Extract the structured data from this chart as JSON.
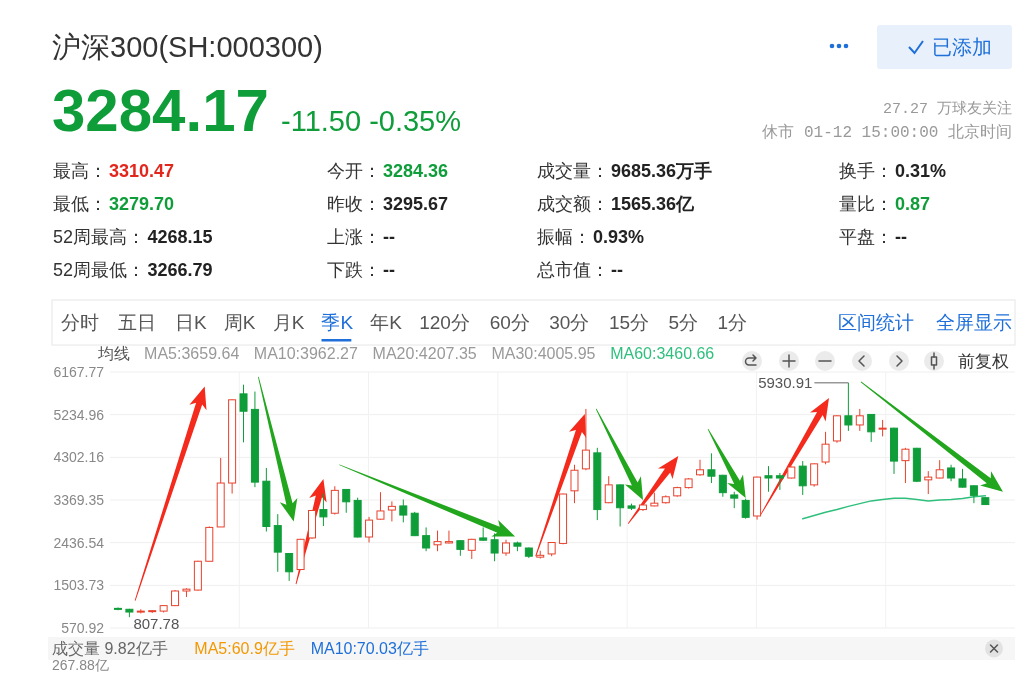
{
  "chart_data": [
    {
      "type": "other",
      "title": "沪深300(SH:000300)",
      "annotations": [
        "3284.17",
        "-11.50 -0.35%",
        "27.27 万球友关注",
        "休市 01-12 15:00:00 北京时间",
        "已添加",
        "最高：",
        "3310.47",
        "今开：",
        "3284.36",
        "成交量：",
        "9685.36万手",
        "换手：",
        "0.31%",
        "最低：",
        "3279.70",
        "昨收：",
        "3295.67",
        "成交额：",
        "1565.36亿",
        "量比：",
        "0.87",
        "52周最高：",
        "4268.15",
        "上涨：",
        "--",
        "振幅：",
        "0.93%",
        "平盘：",
        "--",
        "52周最低：",
        "3266.79",
        "下跌：",
        "--",
        "总市值：",
        "--",
        "分时",
        "五日",
        "日K",
        "周K",
        "月K",
        "季K",
        "年K",
        "120分",
        "60分",
        "30分",
        "15分",
        "5分",
        "1分",
        "区间统计",
        "全屏显示",
        "前复权"
      ]
    },
    {
      "type": "candlestick",
      "categories": [
        null,
        null,
        null,
        null,
        null,
        null,
        null,
        null,
        null,
        null,
        null,
        null,
        null,
        null,
        null,
        null,
        null,
        null,
        null,
        null,
        null,
        null,
        null,
        null,
        null,
        null,
        null,
        null,
        null,
        null,
        null,
        null,
        null,
        null,
        null,
        null,
        null,
        null,
        null,
        null,
        null,
        null,
        null,
        null,
        null,
        null,
        null,
        null,
        null,
        null,
        null,
        null,
        null,
        null,
        null,
        null,
        null,
        null,
        null,
        null,
        null,
        null,
        null,
        null,
        null,
        null,
        null,
        null,
        null,
        null,
        null,
        null,
        null,
        null,
        null,
        null,
        null
      ],
      "ohlc": [
        [
          1000,
          1020,
          960,
          980
        ],
        [
          980,
          990,
          807.78,
          920
        ],
        [
          920,
          980,
          890,
          940
        ],
        [
          940,
          960,
          900,
          950
        ],
        [
          940,
          1070,
          910,
          1060
        ],
        [
          1060,
          1400,
          1050,
          1380
        ],
        [
          1380,
          1440,
          1250,
          1420
        ],
        [
          1400,
          2040,
          1390,
          2030
        ],
        [
          2030,
          2790,
          2030,
          2770
        ],
        [
          2780,
          4290,
          2780,
          3740
        ],
        [
          3740,
          5570,
          3510,
          5560
        ],
        [
          5690,
          5890,
          4630,
          5310
        ],
        [
          5350,
          5740,
          3650,
          3760
        ],
        [
          3780,
          4070,
          2680,
          2790
        ],
        [
          2810,
          3060,
          1800,
          2230
        ],
        [
          2200,
          2210,
          1600,
          1800
        ],
        [
          1850,
          2520,
          1840,
          2510
        ],
        [
          2540,
          3150,
          2520,
          3140
        ],
        [
          3160,
          3510,
          2800,
          3000
        ],
        [
          3080,
          3670,
          3050,
          3580
        ],
        [
          3600,
          3610,
          3090,
          3330
        ],
        [
          3360,
          3420,
          2550,
          2560
        ],
        [
          2560,
          3000,
          2440,
          2930
        ],
        [
          2950,
          3540,
          2940,
          3130
        ],
        [
          3150,
          3340,
          2900,
          3230
        ],
        [
          3240,
          3380,
          2880,
          3040
        ],
        [
          3080,
          3110,
          2580,
          2590
        ],
        [
          2590,
          2770,
          2250,
          2320
        ],
        [
          2390,
          2700,
          2250,
          2460
        ],
        [
          2430,
          2700,
          2420,
          2460
        ],
        [
          2480,
          2490,
          2150,
          2290
        ],
        [
          2270,
          2520,
          2080,
          2510
        ],
        [
          2540,
          2770,
          2480,
          2490
        ],
        [
          2500,
          2640,
          2030,
          2210
        ],
        [
          2210,
          2500,
          2150,
          2430
        ],
        [
          2430,
          2460,
          2250,
          2360
        ],
        [
          2320,
          2330,
          2100,
          2140
        ],
        [
          2120,
          2260,
          2090,
          2160
        ],
        [
          2190,
          2450,
          2140,
          2440
        ],
        [
          2420,
          3510,
          2400,
          3500
        ],
        [
          3570,
          4140,
          3300,
          4020
        ],
        [
          4050,
          5360,
          4020,
          4460
        ],
        [
          4400,
          4510,
          2930,
          3160
        ],
        [
          3310,
          3890,
          3300,
          3700
        ],
        [
          3700,
          3710,
          2790,
          3200
        ],
        [
          3240,
          3290,
          3150,
          3190
        ],
        [
          3160,
          3270,
          3130,
          3260
        ],
        [
          3240,
          3530,
          3230,
          3300
        ],
        [
          3310,
          3470,
          3290,
          3440
        ],
        [
          3460,
          3660,
          3440,
          3640
        ],
        [
          3640,
          3850,
          3620,
          3830
        ],
        [
          3920,
          4250,
          3900,
          4030
        ],
        [
          4030,
          4390,
          3740,
          3890
        ],
        [
          3910,
          3920,
          3440,
          3530
        ],
        [
          3480,
          3550,
          3190,
          3410
        ],
        [
          3360,
          3400,
          2960,
          2990
        ],
        [
          3020,
          3880,
          2940,
          3870
        ],
        [
          3900,
          4110,
          3550,
          3850
        ],
        [
          3900,
          3960,
          3590,
          3850
        ],
        [
          3850,
          4100,
          3840,
          4090
        ],
        [
          4110,
          4220,
          3480,
          3680
        ],
        [
          3700,
          4170,
          3660,
          4160
        ],
        [
          4200,
          4860,
          4150,
          4590
        ],
        [
          4660,
          5220,
          4620,
          5210
        ],
        [
          5210,
          5930.91,
          4880,
          5010
        ],
        [
          5010,
          5360,
          4880,
          5210
        ],
        [
          5240,
          5240,
          4640,
          4860
        ],
        [
          4920,
          5120,
          4760,
          4940
        ],
        [
          4940,
          4950,
          3940,
          4220
        ],
        [
          4230,
          4510,
          3740,
          4480
        ],
        [
          4500,
          4510,
          3760,
          3780
        ],
        [
          3810,
          4000,
          3500,
          3870
        ],
        [
          3850,
          4240,
          3840,
          4030
        ],
        [
          4070,
          4140,
          3780,
          3850
        ],
        [
          3830,
          4050,
          3640,
          3650
        ],
        [
          3680,
          3690,
          3300,
          3470
        ],
        [
          3420,
          3430,
          3260,
          3270
        ]
      ],
      "colors": [
        "#0f9d3a",
        "#0f9d3a",
        "#e8412c",
        "#e8412c",
        "#e8412c",
        "#e8412c",
        "#e8412c",
        "#e8412c",
        "#e8412c",
        "#e8412c",
        "#e8412c",
        "#0f9d3a",
        "#0f9d3a",
        "#0f9d3a",
        "#0f9d3a",
        "#0f9d3a",
        "#e8412c",
        "#e8412c",
        "#0f9d3a",
        "#e8412c",
        "#0f9d3a",
        "#0f9d3a",
        "#e8412c",
        "#e8412c",
        "#e8412c",
        "#0f9d3a",
        "#0f9d3a",
        "#0f9d3a",
        "#e8412c",
        "#e8412c",
        "#0f9d3a",
        "#e8412c",
        "#0f9d3a",
        "#0f9d3a",
        "#e8412c",
        "#0f9d3a",
        "#0f9d3a",
        "#e8412c",
        "#e8412c",
        "#e8412c",
        "#e8412c",
        "#e8412c",
        "#0f9d3a",
        "#e8412c",
        "#0f9d3a",
        "#0f9d3a",
        "#e8412c",
        "#e8412c",
        "#e8412c",
        "#e8412c",
        "#e8412c",
        "#e8412c",
        "#0f9d3a",
        "#0f9d3a",
        "#0f9d3a",
        "#0f9d3a",
        "#e8412c",
        "#0f9d3a",
        "#0f9d3a",
        "#e8412c",
        "#0f9d3a",
        "#e8412c",
        "#e8412c",
        "#e8412c",
        "#0f9d3a",
        "#e8412c",
        "#0f9d3a",
        "#e8412c",
        "#0f9d3a",
        "#e8412c",
        "#0f9d3a",
        "#e8412c",
        "#e8412c",
        "#0f9d3a",
        "#0f9d3a",
        "#0f9d3a",
        "#0f9d3a"
      ],
      "value_labels": [
        null,
        "807.78",
        null,
        null,
        null,
        null,
        null,
        null,
        null,
        null,
        null,
        null,
        null,
        null,
        null,
        null,
        null,
        null,
        null,
        null,
        null,
        null,
        null,
        null,
        null,
        null,
        null,
        null,
        null,
        null,
        null,
        null,
        null,
        null,
        null,
        null,
        null,
        null,
        null,
        null,
        null,
        null,
        null,
        null,
        null,
        null,
        null,
        null,
        null,
        null,
        null,
        null,
        null,
        null,
        null,
        null,
        null,
        null,
        null,
        null,
        null,
        null,
        null,
        null,
        "5930.91",
        null,
        null,
        null,
        null,
        null,
        null,
        null,
        null,
        null,
        null,
        null,
        null
      ],
      "series": [
        {
          "name": "MA60:3460.66",
          "type": "line",
          "color": "#2fbf7d",
          "values": [
            null,
            null,
            null,
            null,
            null,
            null,
            null,
            null,
            null,
            null,
            null,
            null,
            null,
            null,
            null,
            null,
            null,
            null,
            null,
            null,
            null,
            null,
            null,
            null,
            null,
            null,
            null,
            null,
            null,
            null,
            null,
            null,
            null,
            null,
            null,
            null,
            null,
            null,
            null,
            null,
            null,
            null,
            null,
            null,
            null,
            null,
            null,
            null,
            null,
            null,
            null,
            null,
            null,
            null,
            null,
            null,
            null,
            null,
            null,
            null,
            2960,
            3030,
            3100,
            3160,
            3230,
            3290,
            3350,
            3380,
            3410,
            3410,
            3380,
            3350,
            3370,
            3380,
            3400,
            3440,
            3460
          ]
        }
      ],
      "ylim": [
        570.92,
        6167.77
      ],
      "yticks": [
        570.92,
        1503.73,
        2436.54,
        3369.35,
        4302.16,
        5234.96,
        6167.77
      ],
      "grid": true,
      "tick_labels": "y",
      "legend": "top right",
      "legend_title": "均线",
      "annotations": [
        "MA5:3659.64",
        "MA10:3962.27",
        "MA20:4207.35",
        "MA30:4005.95"
      ]
    },
    {
      "type": "other",
      "title": "成交量 9.82亿手",
      "annotations": [
        "MA5:60.9亿手",
        "MA10:70.03亿手",
        "267.88亿"
      ]
    }
  ]
}
